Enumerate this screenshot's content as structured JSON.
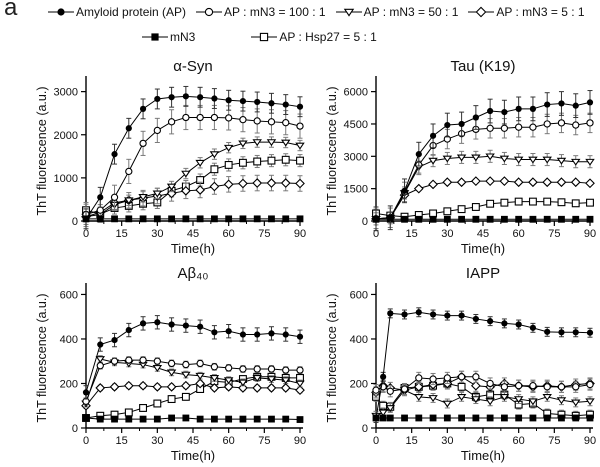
{
  "panel_label": "a",
  "colors": {
    "foreground": "#000000",
    "background": "#ffffff",
    "error_bar": "#7a7a7a"
  },
  "legend": {
    "rows": [
      [
        {
          "label": "Amyloid protein (AP)",
          "marker": "filled-circle"
        },
        {
          "label": "AP : mN3 = 100 : 1",
          "marker": "open-circle"
        },
        {
          "label": "AP : mN3 = 50 : 1",
          "marker": "open-triangle"
        },
        {
          "label": "AP : mN3 = 5 : 1",
          "marker": "open-diamond"
        }
      ],
      [
        {
          "label": "mN3",
          "marker": "filled-square"
        },
        {
          "label": "AP : Hsp27 = 5 : 1",
          "marker": "open-square"
        }
      ]
    ]
  },
  "chart_data": [
    {
      "type": "line",
      "title": "α-Syn",
      "xlabel": "Time(h)",
      "ylabel": "ThT fluorescence (a.u.)",
      "xlim": [
        0,
        90
      ],
      "xticks": [
        0,
        15,
        30,
        45,
        60,
        75,
        90
      ],
      "ylim": [
        0,
        3200
      ],
      "yticks": [
        0,
        1000,
        2000,
        3000
      ],
      "x": [
        0,
        6,
        12,
        18,
        24,
        30,
        36,
        42,
        48,
        54,
        60,
        66,
        72,
        78,
        84,
        90
      ],
      "series": [
        {
          "name": "AP : Hsp27 = 5 : 1",
          "marker": "open-square",
          "err": 140,
          "values": [
            250,
            160,
            300,
            350,
            400,
            430,
            700,
            800,
            950,
            1200,
            1300,
            1350,
            1380,
            1400,
            1420,
            1400
          ]
        },
        {
          "name": "AP : mN3 = 5 : 1",
          "marker": "open-diamond",
          "err": 180,
          "values": [
            100,
            200,
            420,
            480,
            530,
            580,
            640,
            700,
            720,
            800,
            850,
            870,
            880,
            880,
            880,
            870
          ]
        },
        {
          "name": "AP : mN3 = 50 : 1",
          "marker": "open-triangle",
          "err": 120,
          "values": [
            100,
            150,
            380,
            480,
            560,
            640,
            800,
            1100,
            1350,
            1550,
            1700,
            1800,
            1830,
            1830,
            1820,
            1750
          ]
        },
        {
          "name": "AP : mN3 = 100 : 1",
          "marker": "open-circle",
          "err": 280,
          "values": [
            150,
            250,
            550,
            1150,
            1800,
            2100,
            2300,
            2400,
            2400,
            2400,
            2390,
            2350,
            2320,
            2300,
            2280,
            2200
          ]
        },
        {
          "name": "mN3",
          "marker": "filled-square",
          "err": 15,
          "values": [
            50,
            50,
            50,
            50,
            50,
            50,
            50,
            50,
            50,
            50,
            50,
            50,
            50,
            50,
            50,
            50
          ]
        },
        {
          "name": "Amyloid protein (AP)",
          "marker": "filled-circle",
          "err": 230,
          "values": [
            50,
            550,
            1550,
            2150,
            2600,
            2830,
            2870,
            2890,
            2870,
            2840,
            2800,
            2780,
            2760,
            2730,
            2700,
            2650
          ]
        }
      ]
    },
    {
      "type": "line",
      "title": "Tau (K19)",
      "xlabel": "Time(h)",
      "ylabel": "ThT fluorescence (a.u.)",
      "xlim": [
        0,
        90
      ],
      "xticks": [
        0,
        15,
        30,
        45,
        60,
        75,
        90
      ],
      "ylim": [
        0,
        6400
      ],
      "yticks": [
        0,
        1500,
        3000,
        4500,
        6000
      ],
      "x": [
        0,
        6,
        12,
        18,
        24,
        30,
        36,
        42,
        48,
        54,
        60,
        66,
        72,
        78,
        84,
        90
      ],
      "series": [
        {
          "name": "AP : Hsp27 = 5 : 1",
          "marker": "open-square",
          "err": 90,
          "values": [
            350,
            250,
            200,
            280,
            350,
            450,
            550,
            650,
            800,
            850,
            900,
            900,
            900,
            870,
            820,
            850
          ]
        },
        {
          "name": "AP : mN3 = 5 : 1",
          "marker": "open-diamond",
          "err": 90,
          "values": [
            100,
            150,
            1200,
            1500,
            1700,
            1800,
            1800,
            1850,
            1850,
            1850,
            1800,
            1800,
            1800,
            1800,
            1800,
            1750
          ]
        },
        {
          "name": "AP : mN3 = 50 : 1",
          "marker": "open-triangle",
          "err": 280,
          "values": [
            100,
            150,
            1300,
            2500,
            2800,
            2900,
            2950,
            2950,
            3000,
            2900,
            2850,
            2850,
            2850,
            2800,
            2750,
            2750
          ]
        },
        {
          "name": "AP : mN3 = 100 : 1",
          "marker": "open-circle",
          "err": 450,
          "values": [
            100,
            150,
            1350,
            2600,
            3500,
            3800,
            4050,
            4250,
            4300,
            4300,
            4350,
            4350,
            4500,
            4550,
            4450,
            4550
          ]
        },
        {
          "name": "mN3",
          "marker": "filled-square",
          "err": 15,
          "values": [
            80,
            80,
            80,
            80,
            80,
            80,
            80,
            80,
            80,
            80,
            80,
            80,
            80,
            80,
            80,
            80
          ]
        },
        {
          "name": "Amyloid protein (AP)",
          "marker": "filled-circle",
          "err": 550,
          "values": [
            100,
            150,
            1400,
            3100,
            3950,
            4450,
            4500,
            4800,
            5100,
            5050,
            5200,
            5200,
            5400,
            5450,
            5350,
            5500
          ]
        }
      ]
    },
    {
      "type": "line",
      "title": "Aβ₄₀",
      "xlabel": "Time(h)",
      "ylabel": "ThT fluorescence (a.u.)",
      "xlim": [
        0,
        90
      ],
      "xticks": [
        0,
        15,
        30,
        45,
        60,
        75,
        90
      ],
      "ylim": [
        0,
        620
      ],
      "yticks": [
        0,
        200,
        400,
        600
      ],
      "x": [
        0,
        6,
        12,
        18,
        24,
        30,
        36,
        42,
        48,
        54,
        60,
        66,
        72,
        78,
        84,
        90
      ],
      "series": [
        {
          "name": "AP : Hsp27 = 5 : 1",
          "marker": "open-square",
          "err": 15,
          "values": [
            45,
            55,
            60,
            70,
            90,
            110,
            130,
            140,
            175,
            210,
            205,
            220,
            230,
            230,
            225,
            225
          ]
        },
        {
          "name": "AP : mN3 = 5 : 1",
          "marker": "open-diamond",
          "err": 12,
          "values": [
            100,
            180,
            185,
            190,
            190,
            185,
            185,
            190,
            200,
            180,
            185,
            180,
            180,
            180,
            180,
            170
          ]
        },
        {
          "name": "AP : mN3 = 50 : 1",
          "marker": "open-triangle",
          "err": 15,
          "values": [
            110,
            310,
            295,
            290,
            285,
            270,
            250,
            240,
            235,
            225,
            215,
            205,
            225,
            220,
            215,
            200
          ]
        },
        {
          "name": "AP : mN3 = 100 : 1",
          "marker": "open-circle",
          "err": 15,
          "values": [
            120,
            280,
            300,
            305,
            305,
            300,
            290,
            285,
            290,
            275,
            270,
            265,
            265,
            265,
            260,
            260
          ]
        },
        {
          "name": "mN3",
          "marker": "filled-square",
          "err": 5,
          "values": [
            45,
            40,
            40,
            40,
            40,
            40,
            45,
            45,
            40,
            40,
            40,
            40,
            40,
            40,
            40,
            38
          ]
        },
        {
          "name": "Amyloid protein (AP)",
          "marker": "filled-circle",
          "err": 30,
          "values": [
            160,
            375,
            395,
            440,
            470,
            475,
            465,
            460,
            455,
            430,
            435,
            420,
            420,
            425,
            420,
            410
          ]
        }
      ]
    },
    {
      "type": "line",
      "title": "IAPP",
      "xlabel": "Time(h)",
      "ylabel": "ThT fluorescence (a.u.)",
      "xlim": [
        0,
        90
      ],
      "xticks": [
        0,
        15,
        30,
        45,
        60,
        75,
        90
      ],
      "ylim": [
        0,
        620
      ],
      "yticks": [
        0,
        200,
        400,
        600
      ],
      "x": [
        0,
        3,
        6,
        12,
        18,
        24,
        30,
        36,
        42,
        48,
        54,
        60,
        66,
        72,
        78,
        84,
        90
      ],
      "series": [
        {
          "name": "AP : Hsp27 = 5 : 1",
          "marker": "open-square",
          "err": 20,
          "values": [
            140,
            100,
            95,
            180,
            185,
            190,
            200,
            185,
            140,
            150,
            150,
            105,
            110,
            65,
            60,
            55,
            60
          ]
        },
        {
          "name": "AP : mN3 = 5 : 1",
          "marker": "open-diamond",
          "err": 25,
          "values": [
            160,
            190,
            180,
            170,
            185,
            195,
            200,
            230,
            190,
            185,
            200,
            190,
            185,
            190,
            185,
            195,
            200
          ]
        },
        {
          "name": "AP : mN3 = 50 : 1",
          "marker": "open-triangle",
          "err": 20,
          "values": [
            55,
            70,
            90,
            170,
            140,
            135,
            110,
            140,
            130,
            120,
            140,
            130,
            120,
            140,
            125,
            115,
            120
          ]
        },
        {
          "name": "AP : mN3 = 100 : 1",
          "marker": "open-circle",
          "err": 25,
          "values": [
            170,
            185,
            165,
            175,
            225,
            220,
            225,
            230,
            230,
            200,
            185,
            190,
            190,
            185,
            185,
            185,
            195
          ]
        },
        {
          "name": "mN3",
          "marker": "filled-square",
          "err": 5,
          "values": [
            45,
            45,
            45,
            45,
            45,
            45,
            45,
            45,
            45,
            45,
            45,
            45,
            45,
            45,
            45,
            45,
            45
          ]
        },
        {
          "name": "Amyloid protein (AP)",
          "marker": "filled-circle",
          "err": 20,
          "values": [
            45,
            230,
            515,
            510,
            520,
            510,
            505,
            505,
            490,
            480,
            470,
            465,
            450,
            432,
            430,
            430,
            428
          ]
        }
      ]
    }
  ]
}
